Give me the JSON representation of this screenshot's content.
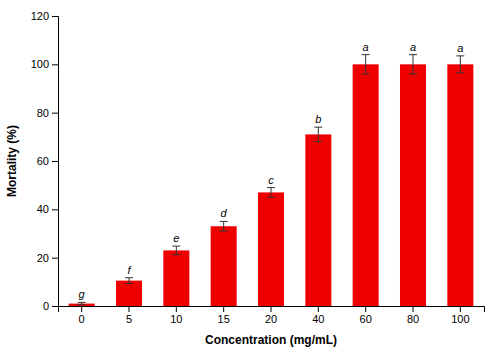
{
  "chart_data": {
    "type": "bar",
    "categories": [
      "0",
      "5",
      "10",
      "15",
      "20",
      "40",
      "60",
      "80",
      "100"
    ],
    "values": [
      1.0,
      10.5,
      23.0,
      33.0,
      47.0,
      71.0,
      100.0,
      100.0,
      100.0
    ],
    "errors": [
      0.5,
      1.2,
      1.8,
      2.0,
      2.0,
      3.0,
      4.0,
      4.0,
      3.5
    ],
    "annotations": [
      "g",
      "f",
      "e",
      "d",
      "c",
      "b",
      "a",
      "a",
      "a"
    ],
    "color": "#EE0000",
    "xlabel": "Concentration (mg/mL)",
    "ylabel": "Mortality (%)",
    "ylim": [
      0,
      120
    ],
    "yticks": [
      0,
      20,
      40,
      60,
      80,
      100,
      120
    ]
  }
}
